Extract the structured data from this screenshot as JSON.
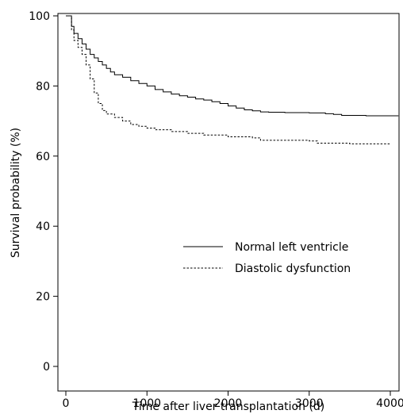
{
  "chart_data": {
    "type": "line",
    "title": "",
    "xlabel": "Time after liver transplantation (d)",
    "ylabel": "Survival probability (%)",
    "xlim": [
      0,
      4200
    ],
    "ylim": [
      0,
      100
    ],
    "x_ticks": [
      0,
      1000,
      2000,
      3000,
      4000
    ],
    "y_ticks": [
      0,
      20,
      40,
      60,
      80,
      100
    ],
    "legend": "center-right",
    "grid": false,
    "series": [
      {
        "name": "Normal left ventricle",
        "style": "solid",
        "color": "#000000",
        "x": [
          0,
          50,
          70,
          100,
          150,
          200,
          250,
          300,
          350,
          400,
          450,
          500,
          550,
          600,
          700,
          800,
          900,
          1000,
          1100,
          1200,
          1300,
          1400,
          1500,
          1600,
          1700,
          1800,
          1900,
          2000,
          2100,
          2200,
          2300,
          2400,
          2500,
          2700,
          3000,
          3200,
          3300,
          3400,
          3700,
          4000,
          4100
        ],
        "y": [
          100,
          100,
          97,
          95,
          93.5,
          92,
          90.5,
          89,
          88,
          87,
          86,
          85,
          84,
          83.2,
          82.5,
          81.5,
          80.7,
          80,
          79,
          78.3,
          77.7,
          77.2,
          76.8,
          76.3,
          76,
          75.5,
          75,
          74.3,
          73.7,
          73.2,
          72.9,
          72.6,
          72.5,
          72.4,
          72.3,
          72.1,
          71.9,
          71.6,
          71.5,
          71.5,
          71.5
        ]
      },
      {
        "name": "Diastolic dysfunction",
        "style": "dashed",
        "color": "#000000",
        "x": [
          0,
          50,
          70,
          100,
          150,
          200,
          250,
          300,
          350,
          400,
          450,
          500,
          600,
          700,
          800,
          900,
          1000,
          1100,
          1300,
          1500,
          1700,
          2000,
          2300,
          2400,
          3000,
          3100,
          3500,
          4000
        ],
        "y": [
          100,
          100,
          96,
          93,
          91,
          89,
          86,
          82,
          78,
          75,
          73,
          72,
          71,
          70,
          69,
          68.5,
          68,
          67.5,
          67,
          66.5,
          66,
          65.5,
          65.2,
          64.5,
          64.3,
          63.7,
          63.5,
          63.5
        ]
      }
    ]
  }
}
